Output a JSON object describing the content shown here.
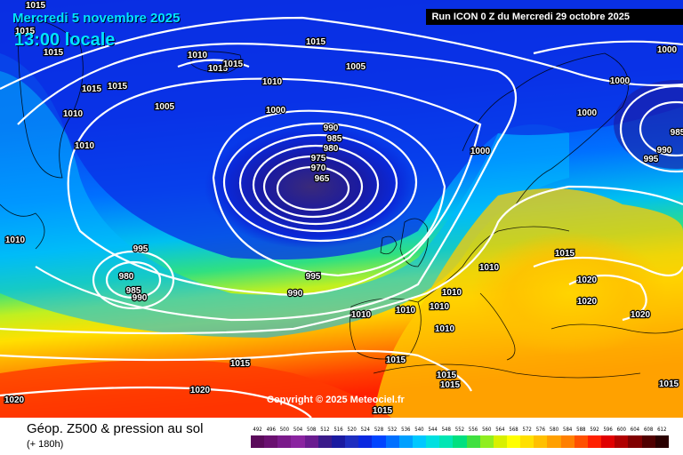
{
  "header": {
    "date": "Mercredi 5 novembre 2025",
    "time": "13:00 locale",
    "run": "Run ICON 0 Z du Mercredi 29 octobre 2025"
  },
  "copyright": "Copyright © 2025 Meteociel.fr",
  "footer": {
    "title": "Géop. Z500 & pression au sol",
    "subtitle": "(+ 180h)"
  },
  "scale": {
    "values": [
      "492",
      "496",
      "500",
      "504",
      "508",
      "512",
      "516",
      "520",
      "524",
      "528",
      "532",
      "536",
      "540",
      "544",
      "548",
      "552",
      "556",
      "560",
      "564",
      "568",
      "572",
      "576",
      "580",
      "584",
      "588",
      "592",
      "596",
      "600",
      "604",
      "608",
      "612"
    ],
    "colors": [
      "#5a0a5a",
      "#6a1070",
      "#7a1a8a",
      "#8a24a0",
      "#6a1c90",
      "#3a1a8a",
      "#1a1aa0",
      "#1e2ec0",
      "#0a28e0",
      "#0044ff",
      "#0070ff",
      "#00a0ff",
      "#00c8ff",
      "#00e0e0",
      "#00e6b4",
      "#00e080",
      "#40e040",
      "#90ee20",
      "#d8f000",
      "#ffff00",
      "#ffe000",
      "#ffc000",
      "#ffa000",
      "#ff8000",
      "#ff5000",
      "#ff2000",
      "#e00000",
      "#b00000",
      "#800000",
      "#500000",
      "#2a0000"
    ]
  },
  "isobars": {
    "labels": [
      "1015",
      "1015",
      "1015",
      "1010",
      "1015",
      "1015",
      "1015",
      "1005",
      "1010",
      "1015",
      "1015",
      "1010",
      "1010",
      "1005",
      "1000",
      "1000",
      "1000",
      "990",
      "985",
      "980",
      "975",
      "970",
      "965",
      "1000",
      "1000",
      "990",
      "985",
      "995",
      "1010",
      "995",
      "980",
      "985",
      "990",
      "990",
      "995",
      "1010",
      "1010",
      "1010",
      "1010",
      "1010",
      "1010",
      "1015",
      "1020",
      "1020",
      "1020",
      "1015",
      "1015",
      "1015",
      "1015",
      "1015",
      "1020",
      "1020",
      "1015"
    ]
  }
}
